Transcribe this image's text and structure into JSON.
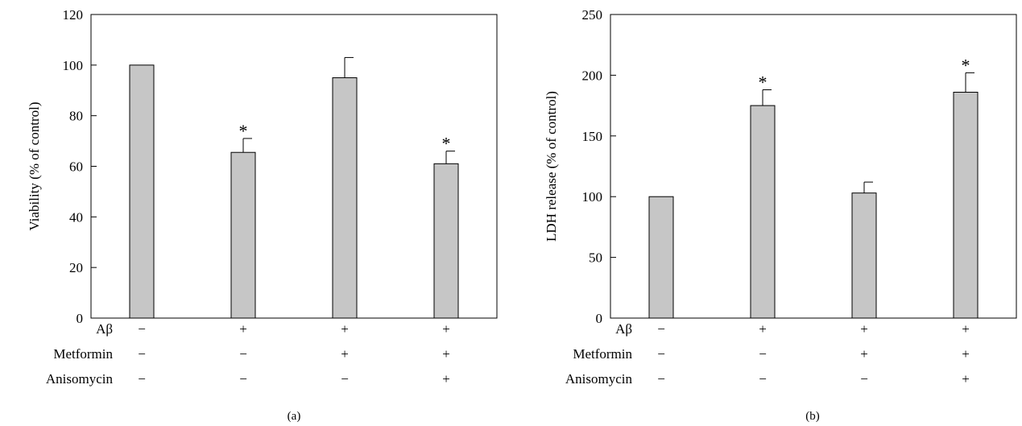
{
  "chart_data": [
    {
      "type": "bar",
      "panel_label": "(a)",
      "ylabel": "Viability (% of control)",
      "ylim": [
        0,
        120
      ],
      "yticks": [
        "0",
        "20",
        "40",
        "60",
        "80",
        "100",
        "120"
      ],
      "bar_color": "#c6c6c6",
      "conditions": [
        {
          "name": "Aβ",
          "values": [
            "−",
            "+",
            "+",
            "+"
          ]
        },
        {
          "name": "Metformin",
          "values": [
            "−",
            "−",
            "+",
            "+"
          ]
        },
        {
          "name": "Anisomycin",
          "values": [
            "−",
            "−",
            "−",
            "+"
          ]
        }
      ],
      "values": [
        100,
        65.5,
        95,
        61
      ],
      "errors": [
        0,
        5.5,
        8,
        5
      ],
      "significance": [
        "",
        "*",
        "",
        "*"
      ]
    },
    {
      "type": "bar",
      "panel_label": "(b)",
      "ylabel": "LDH release (% of control)",
      "ylim": [
        0,
        250
      ],
      "yticks": [
        "0",
        "50",
        "100",
        "150",
        "200",
        "250"
      ],
      "bar_color": "#c6c6c6",
      "conditions": [
        {
          "name": "Aβ",
          "values": [
            "−",
            "+",
            "+",
            "+"
          ]
        },
        {
          "name": "Metformin",
          "values": [
            "−",
            "−",
            "+",
            "+"
          ]
        },
        {
          "name": "Anisomycin",
          "values": [
            "−",
            "−",
            "−",
            "+"
          ]
        }
      ],
      "values": [
        100,
        175,
        103,
        186
      ],
      "errors": [
        0,
        13,
        9,
        16
      ],
      "significance": [
        "",
        "*",
        "",
        "*"
      ]
    }
  ]
}
